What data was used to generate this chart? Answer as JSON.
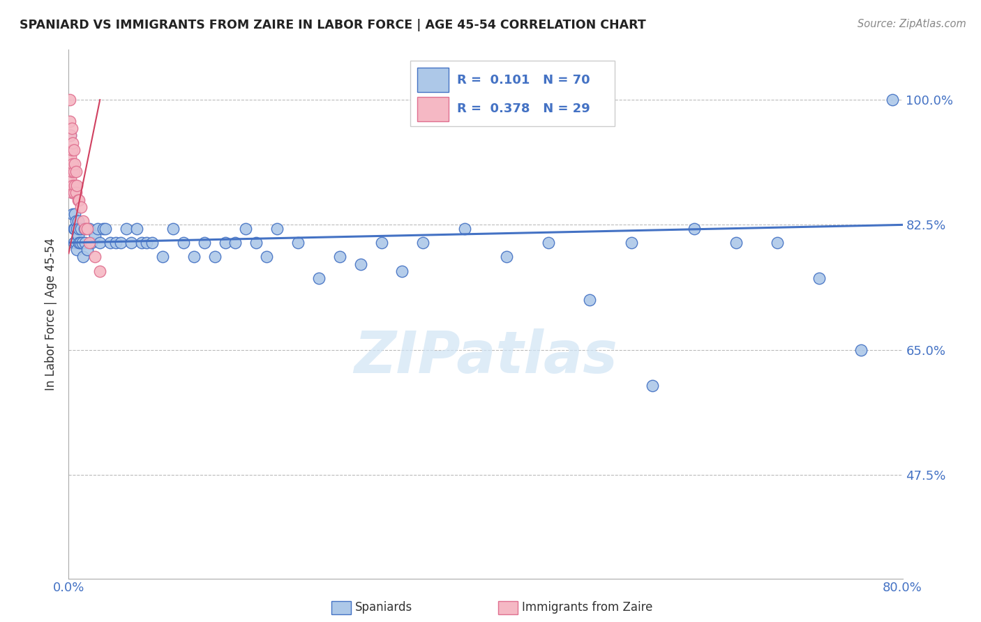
{
  "title": "SPANIARD VS IMMIGRANTS FROM ZAIRE IN LABOR FORCE | AGE 45-54 CORRELATION CHART",
  "source": "Source: ZipAtlas.com",
  "ylabel": "In Labor Force | Age 45-54",
  "legend_label_blue": "Spaniards",
  "legend_label_pink": "Immigrants from Zaire",
  "R_blue": 0.101,
  "N_blue": 70,
  "R_pink": 0.378,
  "N_pink": 29,
  "xlim": [
    0.0,
    0.8
  ],
  "ylim": [
    0.33,
    1.07
  ],
  "yticks": [
    0.475,
    0.65,
    0.825,
    1.0
  ],
  "ytick_labels": [
    "47.5%",
    "65.0%",
    "82.5%",
    "100.0%"
  ],
  "color_blue": "#adc8e8",
  "color_pink": "#f5b8c4",
  "edge_blue": "#4472c4",
  "edge_pink": "#e07090",
  "trendline_blue": "#4472c4",
  "trendline_pink": "#d04060",
  "blue_x": [
    0.002,
    0.003,
    0.004,
    0.004,
    0.005,
    0.005,
    0.006,
    0.006,
    0.007,
    0.007,
    0.008,
    0.008,
    0.009,
    0.009,
    0.01,
    0.01,
    0.011,
    0.012,
    0.013,
    0.014,
    0.015,
    0.016,
    0.018,
    0.02,
    0.022,
    0.025,
    0.028,
    0.03,
    0.033,
    0.035,
    0.04,
    0.045,
    0.05,
    0.055,
    0.06,
    0.065,
    0.07,
    0.075,
    0.08,
    0.09,
    0.1,
    0.11,
    0.12,
    0.13,
    0.14,
    0.15,
    0.16,
    0.17,
    0.18,
    0.19,
    0.2,
    0.22,
    0.24,
    0.26,
    0.28,
    0.3,
    0.32,
    0.34,
    0.38,
    0.42,
    0.46,
    0.5,
    0.54,
    0.56,
    0.6,
    0.64,
    0.68,
    0.72,
    0.76,
    0.79
  ],
  "blue_y": [
    0.95,
    0.9,
    0.87,
    0.84,
    0.82,
    0.8,
    0.82,
    0.84,
    0.83,
    0.8,
    0.79,
    0.82,
    0.83,
    0.81,
    0.8,
    0.82,
    0.8,
    0.82,
    0.8,
    0.78,
    0.82,
    0.8,
    0.79,
    0.82,
    0.8,
    0.81,
    0.82,
    0.8,
    0.82,
    0.82,
    0.8,
    0.8,
    0.8,
    0.82,
    0.8,
    0.82,
    0.8,
    0.8,
    0.8,
    0.78,
    0.82,
    0.8,
    0.78,
    0.8,
    0.78,
    0.8,
    0.8,
    0.82,
    0.8,
    0.78,
    0.82,
    0.8,
    0.75,
    0.78,
    0.77,
    0.8,
    0.76,
    0.8,
    0.82,
    0.78,
    0.8,
    0.72,
    0.8,
    0.6,
    0.82,
    0.8,
    0.8,
    0.75,
    0.65,
    1.0
  ],
  "pink_x": [
    0.001,
    0.001,
    0.002,
    0.002,
    0.002,
    0.003,
    0.003,
    0.003,
    0.003,
    0.004,
    0.004,
    0.004,
    0.005,
    0.005,
    0.005,
    0.006,
    0.006,
    0.007,
    0.007,
    0.008,
    0.009,
    0.01,
    0.012,
    0.014,
    0.016,
    0.018,
    0.02,
    0.025,
    0.03
  ],
  "pink_y": [
    1.0,
    0.97,
    0.95,
    0.92,
    0.89,
    0.96,
    0.93,
    0.9,
    0.87,
    0.94,
    0.91,
    0.88,
    0.93,
    0.9,
    0.87,
    0.91,
    0.88,
    0.9,
    0.87,
    0.88,
    0.86,
    0.86,
    0.85,
    0.83,
    0.82,
    0.82,
    0.8,
    0.78,
    0.76
  ],
  "trendline_blue_y0": 0.8,
  "trendline_blue_y1": 0.825,
  "trendline_pink_x0": 0.0,
  "trendline_pink_y0": 0.785,
  "trendline_pink_x1": 0.03,
  "trendline_pink_y1": 1.0,
  "watermark_text": "ZIPatlas",
  "watermark_color": "#d0e4f5"
}
